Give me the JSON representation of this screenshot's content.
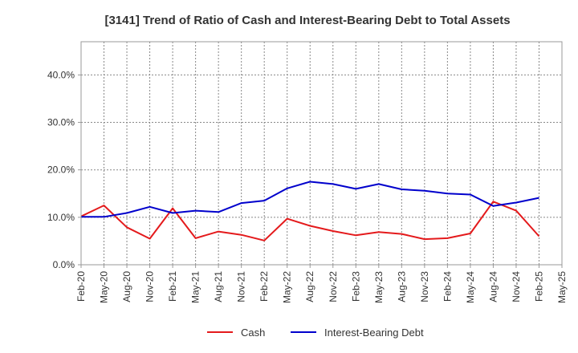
{
  "chart_data": {
    "type": "line",
    "title": "[3141]  Trend of Ratio of Cash and Interest-Bearing Debt to Total Assets",
    "xlabel": "",
    "ylabel": "",
    "x_tick_labels": [
      "Feb-20",
      "May-20",
      "Aug-20",
      "Nov-20",
      "Feb-21",
      "May-21",
      "Aug-21",
      "Nov-21",
      "Feb-22",
      "May-22",
      "Aug-22",
      "Nov-22",
      "Feb-23",
      "May-23",
      "Aug-23",
      "Nov-23",
      "Feb-24",
      "May-24",
      "Aug-24",
      "Nov-24",
      "Feb-25",
      "May-25"
    ],
    "y_tick_labels": [
      "0.0%",
      "10.0%",
      "20.0%",
      "30.0%",
      "40.0%"
    ],
    "y_ticks": [
      0,
      10,
      20,
      30,
      40
    ],
    "ylim": [
      0,
      47
    ],
    "grid": true,
    "legend_position": "bottom",
    "x": [
      "Feb-20",
      "May-20",
      "Aug-20",
      "Nov-20",
      "Feb-21",
      "May-21",
      "Aug-21",
      "Nov-21",
      "Feb-22",
      "May-22",
      "Aug-22",
      "Nov-22",
      "Feb-23",
      "May-23",
      "Aug-23",
      "Nov-23",
      "Feb-24",
      "May-24",
      "Aug-24",
      "Nov-24",
      "Feb-25"
    ],
    "series": [
      {
        "name": "Cash",
        "color": "#e41a1c",
        "values": [
          10.2,
          12.5,
          7.9,
          5.5,
          11.9,
          5.6,
          7.0,
          6.3,
          5.1,
          9.7,
          8.2,
          7.1,
          6.2,
          6.9,
          6.5,
          5.4,
          5.6,
          6.6,
          13.3,
          11.4,
          6.0
        ]
      },
      {
        "name": "Interest-Bearing Debt",
        "color": "#0000cc",
        "values": [
          10.1,
          10.1,
          10.9,
          12.2,
          10.9,
          11.4,
          11.1,
          13.0,
          13.5,
          16.1,
          17.5,
          17.0,
          16.0,
          17.0,
          15.9,
          15.6,
          15.0,
          14.8,
          12.4,
          13.1,
          14.1
        ]
      }
    ]
  }
}
